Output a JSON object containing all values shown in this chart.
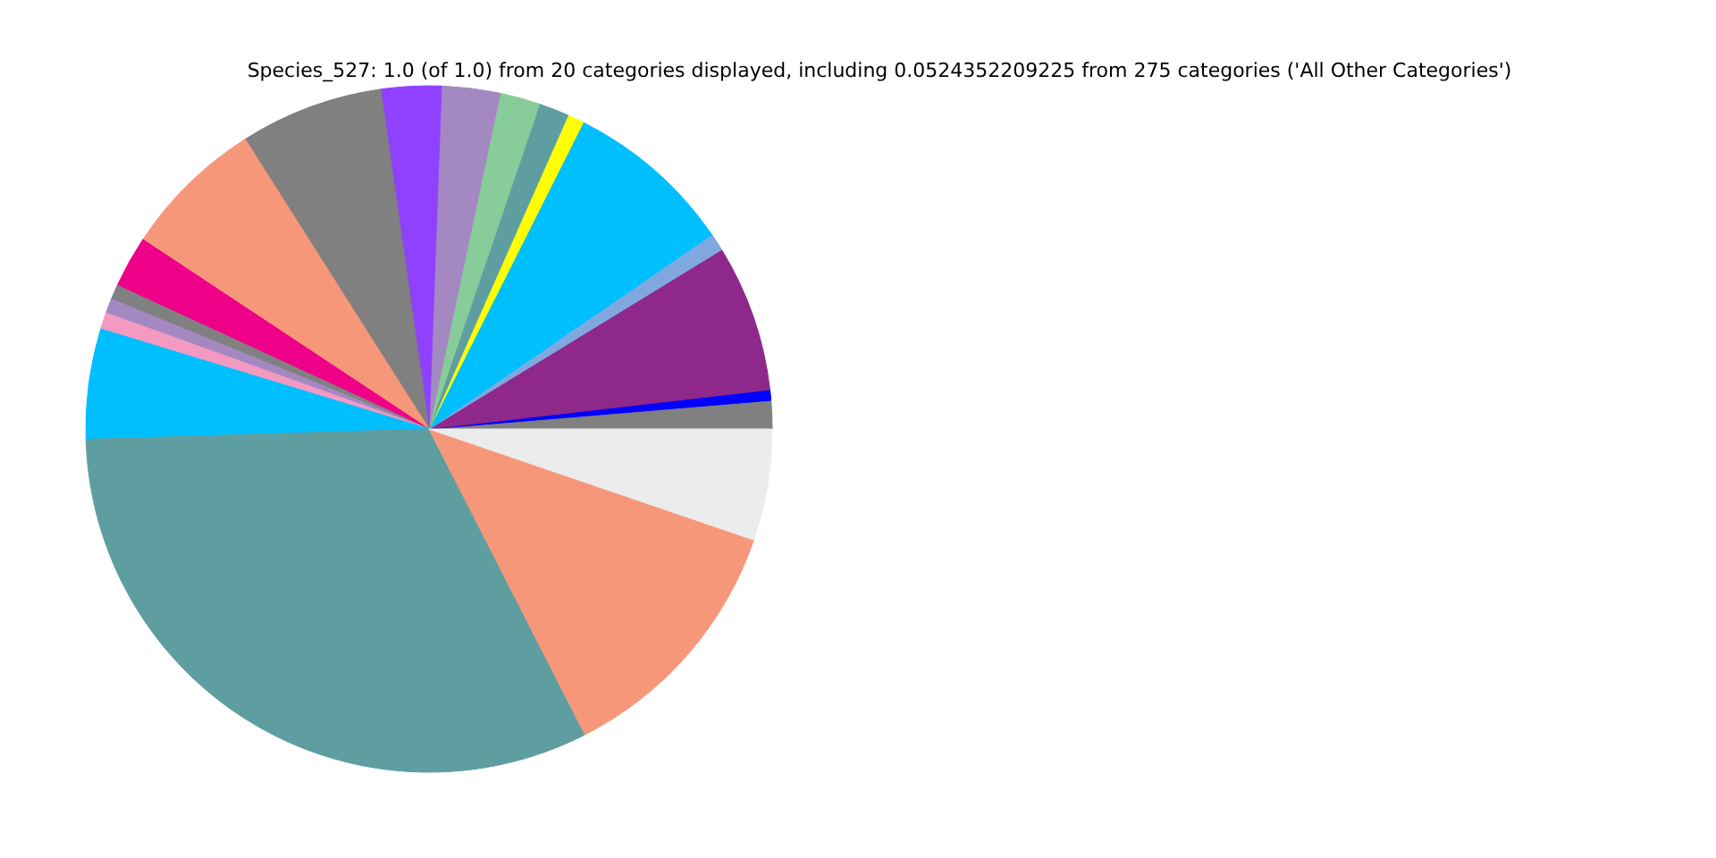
{
  "chart_data": {
    "type": "pie",
    "title": "Species_527: 1.0 (of 1.0) from 20 categories displayed, including 0.0524352209225 from 275 categories ('All Other Categories')",
    "categories": [
      null,
      null,
      null,
      null,
      null,
      null,
      null,
      null,
      null,
      null,
      null,
      null,
      null,
      null,
      null,
      null,
      null,
      null,
      null,
      null
    ],
    "values": [
      1.33,
      0.5,
      6.92,
      0.83,
      8.0,
      0.78,
      1.42,
      1.89,
      2.75,
      2.83,
      6.75,
      6.69,
      2.44,
      0.69,
      0.69,
      0.78,
      5.19,
      32.03,
      12.25,
      5.24
    ],
    "colors": [
      "#808080",
      "#0000ff",
      "#8e288a",
      "#80a8e0",
      "#00bfff",
      "#ffff00",
      "#5f9ea0",
      "#88cc99",
      "#a388c2",
      "#9040ff",
      "#808080",
      "#f7977a",
      "#ee0088",
      "#808080",
      "#a388c2",
      "#f49ac2",
      "#00bfff",
      "#5f9ea0",
      "#f7977a",
      "#ececec"
    ]
  }
}
